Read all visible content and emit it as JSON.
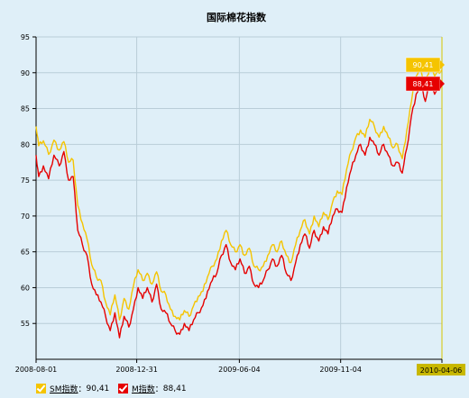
{
  "chart_data": {
    "type": "line",
    "title": "国际棉花指数",
    "ylim": [
      50,
      95
    ],
    "yticks": [
      55,
      60,
      65,
      70,
      75,
      80,
      85,
      90,
      95
    ],
    "xticks": [
      "2008-08-01",
      "2008-12-31",
      "2009-06-04",
      "2009-11-04",
      "2010-04-06"
    ],
    "x_start": "2008-08-01",
    "x_end": "2010-04-06",
    "grid": true,
    "legend_position": "bottom-left",
    "series": [
      {
        "name": "SM指数",
        "color": "#f5c400",
        "last_value": "90,41",
        "points": [
          [
            "2008-08-01",
            82.5
          ],
          [
            "2008-08-05",
            79.8
          ],
          [
            "2008-08-12",
            80.5
          ],
          [
            "2008-08-20",
            78.6
          ],
          [
            "2008-08-28",
            80.6
          ],
          [
            "2008-09-05",
            79.2
          ],
          [
            "2008-09-12",
            80.4
          ],
          [
            "2008-09-19",
            77.5
          ],
          [
            "2008-09-26",
            77.8
          ],
          [
            "2008-10-03",
            71.5
          ],
          [
            "2008-10-10",
            69.0
          ],
          [
            "2008-10-17",
            66.8
          ],
          [
            "2008-10-24",
            63.2
          ],
          [
            "2008-10-31",
            61.5
          ],
          [
            "2008-11-07",
            61.0
          ],
          [
            "2008-11-14",
            58.0
          ],
          [
            "2008-11-21",
            56.2
          ],
          [
            "2008-11-28",
            59.0
          ],
          [
            "2008-12-05",
            55.5
          ],
          [
            "2008-12-12",
            58.5
          ],
          [
            "2008-12-19",
            57.0
          ],
          [
            "2008-12-26",
            60.2
          ],
          [
            "2009-01-02",
            62.5
          ],
          [
            "2009-01-09",
            61.0
          ],
          [
            "2009-01-16",
            62.0
          ],
          [
            "2009-01-23",
            60.5
          ],
          [
            "2009-01-30",
            62.2
          ],
          [
            "2009-02-06",
            59.5
          ],
          [
            "2009-02-13",
            59.0
          ],
          [
            "2009-02-20",
            57.0
          ],
          [
            "2009-02-27",
            56.0
          ],
          [
            "2009-03-06",
            55.5
          ],
          [
            "2009-03-13",
            56.8
          ],
          [
            "2009-03-20",
            56.0
          ],
          [
            "2009-03-27",
            57.5
          ],
          [
            "2009-04-03",
            58.8
          ],
          [
            "2009-04-10",
            59.5
          ],
          [
            "2009-04-17",
            61.5
          ],
          [
            "2009-04-24",
            63.0
          ],
          [
            "2009-05-01",
            64.0
          ],
          [
            "2009-05-08",
            66.5
          ],
          [
            "2009-05-15",
            68.0
          ],
          [
            "2009-05-22",
            66.0
          ],
          [
            "2009-05-29",
            65.0
          ],
          [
            "2009-06-05",
            66.0
          ],
          [
            "2009-06-12",
            64.5
          ],
          [
            "2009-06-19",
            65.5
          ],
          [
            "2009-06-26",
            63.0
          ],
          [
            "2009-07-03",
            62.5
          ],
          [
            "2009-07-10",
            63.0
          ],
          [
            "2009-07-17",
            64.5
          ],
          [
            "2009-07-24",
            66.0
          ],
          [
            "2009-07-31",
            65.0
          ],
          [
            "2009-08-07",
            66.5
          ],
          [
            "2009-08-14",
            64.5
          ],
          [
            "2009-08-21",
            63.5
          ],
          [
            "2009-08-28",
            66.0
          ],
          [
            "2009-09-04",
            68.0
          ],
          [
            "2009-09-11",
            69.5
          ],
          [
            "2009-09-18",
            67.5
          ],
          [
            "2009-09-25",
            70.0
          ],
          [
            "2009-10-02",
            68.5
          ],
          [
            "2009-10-09",
            70.5
          ],
          [
            "2009-10-16",
            69.5
          ],
          [
            "2009-10-23",
            72.0
          ],
          [
            "2009-10-30",
            73.5
          ],
          [
            "2009-11-06",
            73.0
          ],
          [
            "2009-11-13",
            76.5
          ],
          [
            "2009-11-20",
            79.0
          ],
          [
            "2009-11-27",
            81.0
          ],
          [
            "2009-12-04",
            82.0
          ],
          [
            "2009-12-11",
            81.0
          ],
          [
            "2009-12-18",
            83.5
          ],
          [
            "2009-12-25",
            82.5
          ],
          [
            "2010-01-01",
            81.0
          ],
          [
            "2010-01-08",
            82.5
          ],
          [
            "2010-01-15",
            81.0
          ],
          [
            "2010-01-22",
            79.5
          ],
          [
            "2010-01-29",
            80.0
          ],
          [
            "2010-02-05",
            78.0
          ],
          [
            "2010-02-12",
            82.0
          ],
          [
            "2010-02-19",
            86.0
          ],
          [
            "2010-02-26",
            89.5
          ],
          [
            "2010-03-05",
            90.5
          ],
          [
            "2010-03-12",
            88.5
          ],
          [
            "2010-03-19",
            91.0
          ],
          [
            "2010-03-26",
            89.5
          ],
          [
            "2010-04-06",
            90.41
          ]
        ]
      },
      {
        "name": "M指数",
        "color": "#e60000",
        "last_value": "88,41",
        "points": [
          [
            "2008-08-01",
            78.5
          ],
          [
            "2008-08-05",
            75.5
          ],
          [
            "2008-08-12",
            77.0
          ],
          [
            "2008-08-20",
            75.2
          ],
          [
            "2008-08-28",
            78.5
          ],
          [
            "2008-09-05",
            77.0
          ],
          [
            "2008-09-12",
            79.0
          ],
          [
            "2008-09-19",
            75.0
          ],
          [
            "2008-09-26",
            75.5
          ],
          [
            "2008-10-03",
            68.0
          ],
          [
            "2008-10-10",
            66.0
          ],
          [
            "2008-10-17",
            64.5
          ],
          [
            "2008-10-24",
            60.5
          ],
          [
            "2008-10-31",
            59.0
          ],
          [
            "2008-11-07",
            58.0
          ],
          [
            "2008-11-14",
            56.0
          ],
          [
            "2008-11-21",
            54.0
          ],
          [
            "2008-11-28",
            56.5
          ],
          [
            "2008-12-05",
            53.0
          ],
          [
            "2008-12-12",
            56.0
          ],
          [
            "2008-12-19",
            54.5
          ],
          [
            "2008-12-26",
            57.0
          ],
          [
            "2009-01-02",
            60.0
          ],
          [
            "2009-01-09",
            58.5
          ],
          [
            "2009-01-16",
            60.0
          ],
          [
            "2009-01-23",
            58.0
          ],
          [
            "2009-01-30",
            60.5
          ],
          [
            "2009-02-06",
            57.0
          ],
          [
            "2009-02-13",
            56.5
          ],
          [
            "2009-02-20",
            55.0
          ],
          [
            "2009-02-27",
            54.0
          ],
          [
            "2009-03-06",
            53.5
          ],
          [
            "2009-03-13",
            55.0
          ],
          [
            "2009-03-20",
            54.0
          ],
          [
            "2009-03-27",
            55.5
          ],
          [
            "2009-04-03",
            56.5
          ],
          [
            "2009-04-10",
            57.5
          ],
          [
            "2009-04-17",
            59.5
          ],
          [
            "2009-04-24",
            61.0
          ],
          [
            "2009-05-01",
            62.0
          ],
          [
            "2009-05-08",
            64.5
          ],
          [
            "2009-05-15",
            66.0
          ],
          [
            "2009-05-22",
            63.5
          ],
          [
            "2009-05-29",
            62.5
          ],
          [
            "2009-06-05",
            64.0
          ],
          [
            "2009-06-12",
            62.0
          ],
          [
            "2009-06-19",
            63.0
          ],
          [
            "2009-06-26",
            60.5
          ],
          [
            "2009-07-03",
            60.0
          ],
          [
            "2009-07-10",
            61.0
          ],
          [
            "2009-07-17",
            62.5
          ],
          [
            "2009-07-24",
            64.0
          ],
          [
            "2009-07-31",
            63.0
          ],
          [
            "2009-08-07",
            64.5
          ],
          [
            "2009-08-14",
            62.0
          ],
          [
            "2009-08-21",
            61.0
          ],
          [
            "2009-08-28",
            63.5
          ],
          [
            "2009-09-04",
            66.0
          ],
          [
            "2009-09-11",
            67.5
          ],
          [
            "2009-09-18",
            65.5
          ],
          [
            "2009-09-25",
            68.0
          ],
          [
            "2009-10-02",
            66.5
          ],
          [
            "2009-10-09",
            68.5
          ],
          [
            "2009-10-16",
            67.5
          ],
          [
            "2009-10-23",
            70.0
          ],
          [
            "2009-10-30",
            71.0
          ],
          [
            "2009-11-06",
            70.5
          ],
          [
            "2009-11-13",
            74.0
          ],
          [
            "2009-11-20",
            76.5
          ],
          [
            "2009-11-27",
            78.5
          ],
          [
            "2009-12-04",
            80.0
          ],
          [
            "2009-12-11",
            78.5
          ],
          [
            "2009-12-18",
            81.0
          ],
          [
            "2009-12-25",
            80.0
          ],
          [
            "2010-01-01",
            78.5
          ],
          [
            "2010-01-08",
            80.0
          ],
          [
            "2010-01-15",
            78.5
          ],
          [
            "2010-01-22",
            77.0
          ],
          [
            "2010-01-29",
            77.5
          ],
          [
            "2010-02-05",
            76.0
          ],
          [
            "2010-02-12",
            79.5
          ],
          [
            "2010-02-19",
            84.0
          ],
          [
            "2010-02-26",
            87.0
          ],
          [
            "2010-03-05",
            88.5
          ],
          [
            "2010-03-12",
            86.0
          ],
          [
            "2010-03-19",
            89.0
          ],
          [
            "2010-03-26",
            87.0
          ],
          [
            "2010-04-06",
            88.41
          ]
        ]
      }
    ]
  },
  "legend": {
    "separator": "：",
    "items": [
      {
        "name": "SM指数",
        "value": "90,41",
        "color": "#f5c400"
      },
      {
        "name": "M指数",
        "value": "88,41",
        "color": "#e60000"
      }
    ]
  }
}
